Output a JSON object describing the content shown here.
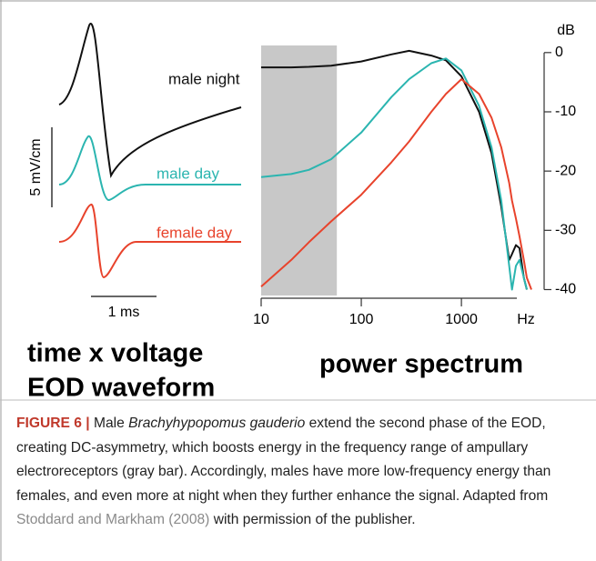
{
  "chart_data": {
    "type": "line",
    "title": "power spectrum",
    "x_label": "Hz",
    "y_label": "dB",
    "x": [
      10,
      20,
      30,
      50,
      100,
      200,
      300,
      500,
      700,
      1000,
      1500,
      2000,
      2500,
      3000,
      3200,
      3500,
      3800,
      4200,
      4500,
      5000
    ],
    "series": [
      {
        "name": "male night",
        "color": "#111111",
        "values": [
          -2.5,
          -2.5,
          -2.4,
          -2.2,
          -1.5,
          -0.3,
          0.3,
          -0.5,
          -1.3,
          -4,
          -10,
          -17,
          -26,
          -35,
          -34,
          -32.5,
          -33,
          -38,
          -40,
          null
        ]
      },
      {
        "name": "male day",
        "color": "#2bb5b0",
        "values": [
          -21,
          -20.5,
          -19.8,
          -18,
          -13.5,
          -7.5,
          -4.5,
          -1.8,
          -1,
          -3,
          -9,
          -16,
          -25,
          -36,
          -40,
          -36,
          -35,
          -38,
          -40,
          null
        ]
      },
      {
        "name": "female day",
        "color": "#e8432c",
        "values": [
          -39.5,
          -35,
          -32,
          -28.5,
          -24,
          -18.5,
          -15,
          -10,
          -7,
          -4.5,
          -7,
          -11,
          -16,
          -22,
          -25,
          -28,
          -31,
          -35,
          -38,
          -40
        ]
      }
    ],
    "shaded_range": [
      10,
      57
    ],
    "shaded_color": "#c8c8c8",
    "xscale": "log",
    "xlim": [
      10,
      6700
    ],
    "xticks": [
      10,
      100,
      1000
    ],
    "ylim": [
      -41,
      1.2
    ],
    "yticks": [
      0,
      -10,
      -20,
      -30,
      -40
    ],
    "y_axis_side": "right"
  },
  "waveform_panel": {
    "labels": [
      "male night",
      "male day",
      "female day"
    ],
    "voltage_scale": "5 mV/cm",
    "time_scale": "1 ms",
    "title": [
      "time x voltage",
      "EOD waveform"
    ]
  },
  "caption": {
    "label": "FIGURE 6 |",
    "text_1": "Male ",
    "species": "Brachyhypopomus gauderio",
    "text_2": " extend the second phase of the EOD, creating DC-asymmetry, which boosts energy in the frequency range of ampullary electroreceptors (gray bar). Accordingly, males have more low-frequency energy than females, and even more at night when they further enhance the signal. Adapted from ",
    "citation": "Stoddard and Markham (2008)",
    "text_3": " with permission of the publisher."
  }
}
